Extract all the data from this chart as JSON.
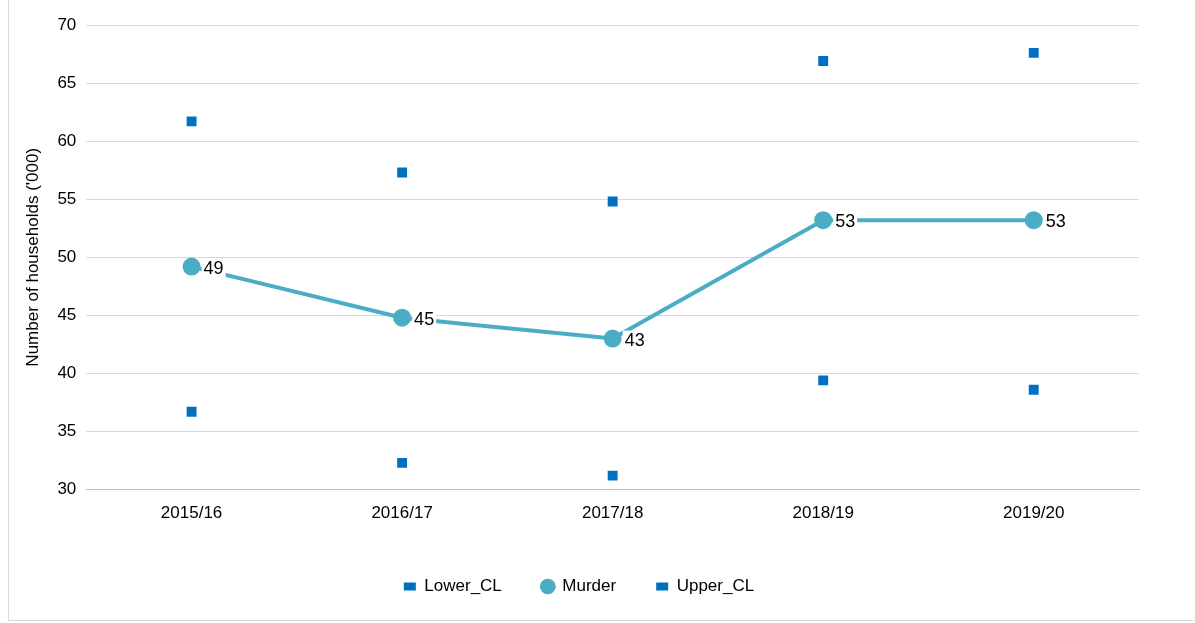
{
  "chart_data": {
    "type": "line",
    "ylabel": "Number of households ('000)",
    "categories": [
      "2015/16",
      "2016/17",
      "2017/18",
      "2018/19",
      "2019/20"
    ],
    "series": [
      {
        "name": "Lower_CL",
        "type": "scatter",
        "marker": "square",
        "color": "#0070c0",
        "values": [
          61.7,
          57.3,
          54.8,
          66.9,
          67.6
        ]
      },
      {
        "name": "Murder",
        "marker": "circle",
        "color": "#4bacc6",
        "values": [
          49.2,
          44.8,
          43.0,
          53.2,
          53.2
        ],
        "value_labels": [
          "49",
          "45",
          "43",
          "53",
          "53"
        ]
      },
      {
        "name": "Upper_CL",
        "type": "scatter",
        "marker": "square",
        "color": "#0070c0",
        "values": [
          36.7,
          32.3,
          31.2,
          39.4,
          38.6
        ]
      }
    ],
    "ylim": [
      30,
      70
    ],
    "yticks": [
      30,
      35,
      40,
      45,
      50,
      55,
      60,
      65,
      70
    ],
    "grid": "y",
    "legend": "bottom"
  }
}
